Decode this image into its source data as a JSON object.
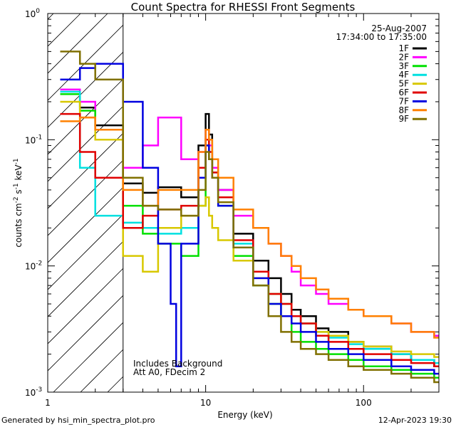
{
  "footer": {
    "left": "Generated by hsi_min_spectra_plot.pro",
    "right": "12-Apr-2023 19:30"
  },
  "chart_data": {
    "type": "line",
    "title": "Count Spectra for RHESSI Front Segments",
    "xlabel": "Energy (keV)",
    "ylabel_parts": {
      "base": "counts cm",
      "exp1": "-2",
      "mid": " s",
      "exp2": "-1",
      "end": " keV",
      "exp3": "-1"
    },
    "x_scale": "log",
    "y_scale": "log",
    "xlim": [
      1,
      300
    ],
    "ylim": [
      0.001,
      1
    ],
    "x_ticks": [
      {
        "value": 1,
        "label": "1"
      },
      {
        "value": 10,
        "label": "10"
      },
      {
        "value": 100,
        "label": "100"
      }
    ],
    "y_ticks": [
      {
        "value": 1,
        "base": "10",
        "exp": "0"
      },
      {
        "value": 0.1,
        "base": "10",
        "exp": "-1"
      },
      {
        "value": 0.01,
        "base": "10",
        "exp": "-2"
      },
      {
        "value": 0.001,
        "base": "10",
        "exp": "-3"
      }
    ],
    "date": "25-Aug-2007",
    "time_range": "17:34:00 to 17:35:00",
    "annotations": [
      "Includes Background",
      "Att A0, FDecim 2"
    ],
    "attenuator_cutoff_kev": 3,
    "colors": {
      "1F": "#000000",
      "2F": "#ff00ff",
      "3F": "#00e000",
      "4F": "#00e0e0",
      "5F": "#d8c800",
      "6F": "#e00000",
      "7F": "#0000e0",
      "8F": "#ff8000",
      "9F": "#807000"
    },
    "series": [
      {
        "name": "1F",
        "x": [
          1.2,
          1.6,
          2.0,
          3,
          4,
          5,
          7,
          9,
          10,
          10.5,
          11,
          12,
          15,
          20,
          25,
          30,
          35,
          40,
          50,
          60,
          80,
          100,
          150,
          200,
          280
        ],
        "y": [
          0.23,
          0.18,
          0.13,
          0.045,
          0.038,
          0.042,
          0.035,
          0.09,
          0.16,
          0.11,
          0.06,
          0.04,
          0.018,
          0.011,
          0.008,
          0.006,
          0.0045,
          0.004,
          0.0032,
          0.003,
          0.0025,
          0.0023,
          0.002,
          0.0018,
          0.0016
        ]
      },
      {
        "name": "2F",
        "x": [
          1.2,
          1.6,
          2.0,
          3,
          4,
          5,
          7,
          9,
          10,
          10.5,
          11,
          12,
          15,
          20,
          25,
          30,
          35,
          40,
          50,
          60,
          80,
          100,
          150,
          200,
          280
        ],
        "y": [
          0.25,
          0.2,
          0.12,
          0.06,
          0.09,
          0.15,
          0.07,
          0.08,
          0.12,
          0.09,
          0.06,
          0.04,
          0.025,
          0.02,
          0.015,
          0.012,
          0.009,
          0.007,
          0.006,
          0.005,
          0.0045,
          0.004,
          0.0035,
          0.003,
          0.0028
        ]
      },
      {
        "name": "3F",
        "x": [
          1.2,
          1.6,
          2.0,
          3,
          4,
          5,
          7,
          9,
          10,
          10.5,
          11,
          12,
          15,
          20,
          25,
          30,
          35,
          40,
          50,
          60,
          80,
          100,
          150,
          200,
          280
        ],
        "y": [
          0.23,
          0.17,
          0.12,
          0.03,
          0.018,
          0.015,
          0.012,
          0.03,
          0.09,
          0.07,
          0.05,
          0.03,
          0.012,
          0.007,
          0.005,
          0.004,
          0.003,
          0.0025,
          0.0022,
          0.002,
          0.0018,
          0.0016,
          0.0015,
          0.0014,
          0.0013
        ]
      },
      {
        "name": "4F",
        "x": [
          1.2,
          1.6,
          2.0,
          3,
          4,
          5,
          7,
          9,
          10,
          10.5,
          11,
          12,
          15,
          20,
          25,
          30,
          35,
          40,
          50,
          60,
          80,
          100,
          150,
          200,
          280
        ],
        "y": [
          0.24,
          0.06,
          0.025,
          0.022,
          0.02,
          0.018,
          0.02,
          0.05,
          0.1,
          0.08,
          0.055,
          0.035,
          0.015,
          0.009,
          0.006,
          0.005,
          0.004,
          0.0035,
          0.003,
          0.0027,
          0.0024,
          0.0022,
          0.002,
          0.0018,
          0.0017
        ]
      },
      {
        "name": "5F",
        "x": [
          1.2,
          1.6,
          2.0,
          3,
          4,
          5,
          7,
          9,
          10,
          10.5,
          11,
          12,
          15,
          20,
          25,
          30,
          35,
          40,
          50,
          60,
          80,
          100,
          150,
          200,
          280
        ],
        "y": [
          0.2,
          0.15,
          0.1,
          0.012,
          0.009,
          0.02,
          0.025,
          0.03,
          0.035,
          0.025,
          0.02,
          0.016,
          0.011,
          0.008,
          0.006,
          0.005,
          0.004,
          0.0035,
          0.003,
          0.0028,
          0.0025,
          0.0023,
          0.0021,
          0.002,
          0.0019
        ]
      },
      {
        "name": "6F",
        "x": [
          1.2,
          1.6,
          2.0,
          3,
          4,
          5,
          7,
          9,
          10,
          10.5,
          11,
          12,
          15,
          20,
          25,
          30,
          35,
          40,
          50,
          60,
          80,
          100,
          150,
          200,
          280
        ],
        "y": [
          0.16,
          0.08,
          0.05,
          0.02,
          0.025,
          0.028,
          0.03,
          0.06,
          0.1,
          0.08,
          0.055,
          0.035,
          0.016,
          0.009,
          0.006,
          0.005,
          0.004,
          0.0035,
          0.0028,
          0.0025,
          0.0022,
          0.002,
          0.0018,
          0.0017,
          0.0016
        ]
      },
      {
        "name": "7F",
        "x": [
          1.2,
          1.6,
          2.0,
          3,
          4,
          5,
          6,
          6.5,
          7,
          9,
          10,
          10.5,
          11,
          12,
          15,
          20,
          25,
          30,
          35,
          40,
          50,
          60,
          80,
          100,
          150,
          200,
          280
        ],
        "y": [
          0.3,
          0.37,
          0.4,
          0.2,
          0.06,
          0.015,
          0.005,
          0.0016,
          0.015,
          0.05,
          0.09,
          0.07,
          0.05,
          0.03,
          0.014,
          0.008,
          0.005,
          0.004,
          0.0035,
          0.003,
          0.0025,
          0.0022,
          0.002,
          0.0018,
          0.0016,
          0.0015,
          0.0014
        ]
      },
      {
        "name": "8F",
        "x": [
          1.2,
          1.6,
          2.0,
          3,
          4,
          5,
          7,
          9,
          10,
          10.5,
          11,
          12,
          15,
          20,
          25,
          30,
          35,
          40,
          50,
          60,
          80,
          100,
          150,
          200,
          280
        ],
        "y": [
          0.14,
          0.15,
          0.12,
          0.04,
          0.03,
          0.04,
          0.04,
          0.08,
          0.12,
          0.1,
          0.07,
          0.05,
          0.028,
          0.02,
          0.015,
          0.012,
          0.01,
          0.008,
          0.0065,
          0.0055,
          0.0045,
          0.004,
          0.0035,
          0.003,
          0.0027
        ]
      },
      {
        "name": "9F",
        "x": [
          1.2,
          1.6,
          2.0,
          3,
          4,
          5,
          7,
          9,
          10,
          10.5,
          11,
          12,
          15,
          20,
          25,
          30,
          35,
          40,
          50,
          60,
          80,
          100,
          150,
          200,
          280
        ],
        "y": [
          0.5,
          0.4,
          0.3,
          0.05,
          0.03,
          0.028,
          0.025,
          0.04,
          0.08,
          0.07,
          0.05,
          0.032,
          0.014,
          0.007,
          0.004,
          0.003,
          0.0025,
          0.0022,
          0.002,
          0.0018,
          0.0016,
          0.0015,
          0.0014,
          0.0013,
          0.0012
        ]
      }
    ]
  }
}
